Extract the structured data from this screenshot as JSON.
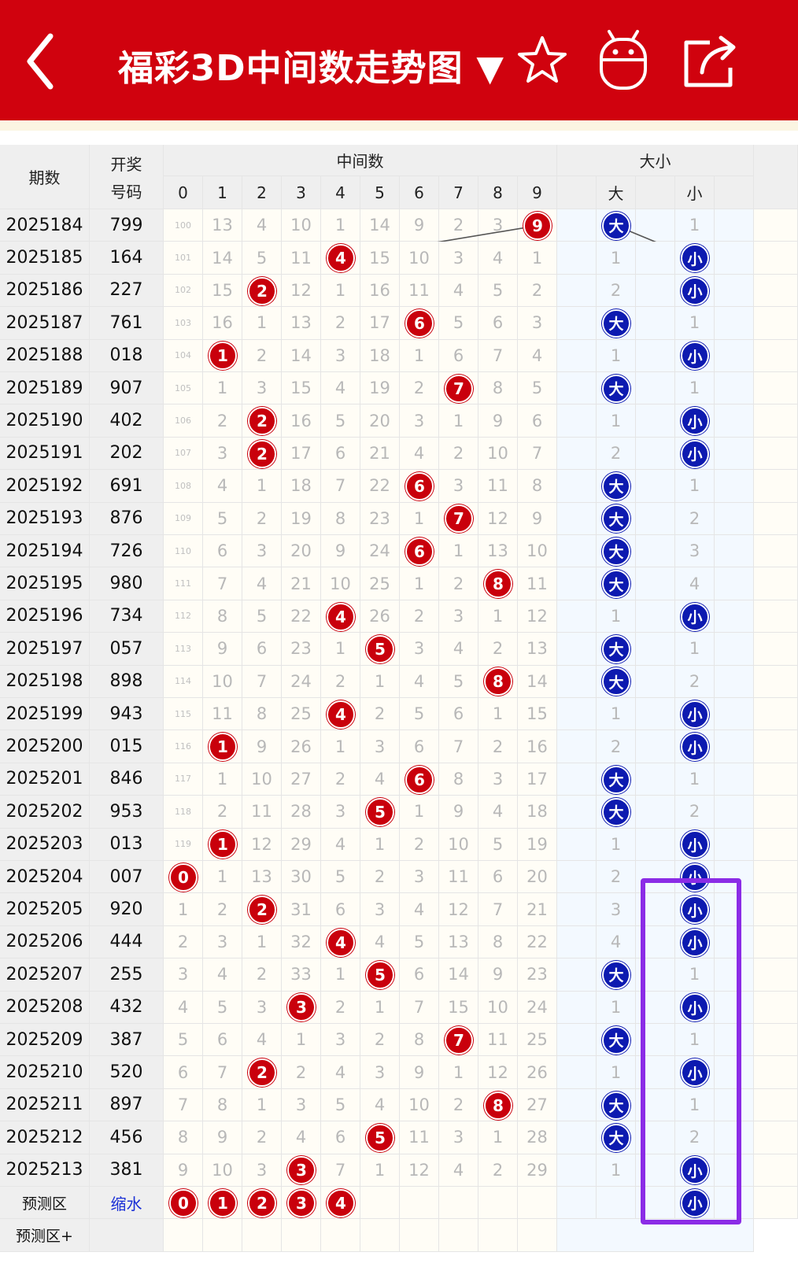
{
  "app": {
    "title": "福彩3D中间数走势图 ▼",
    "icons": [
      "back-arrow-icon",
      "star-icon",
      "android-robot-icon",
      "share-icon"
    ],
    "colors": {
      "header": "#d0020e",
      "red_ball": "#c9000c",
      "blue_ball": "#0d1ab0",
      "highlight": "#8b2ce6"
    }
  },
  "table": {
    "headers": {
      "issue": "期数",
      "number_line1": "开奖",
      "number_line2": "号码",
      "middle": "中间数",
      "size": "大小",
      "digits": [
        "0",
        "1",
        "2",
        "3",
        "4",
        "5",
        "6",
        "7",
        "8",
        "9"
      ],
      "big": "大",
      "small": "小"
    },
    "rows": [
      {
        "issue": "2025184",
        "number": "799",
        "col0": "100",
        "cells": [
          "13",
          "4",
          "10",
          "1",
          "14",
          "9",
          "2",
          "3",
          "9"
        ],
        "mid": 9,
        "big": "大",
        "small": "1",
        "size": "big"
      },
      {
        "issue": "2025185",
        "number": "164",
        "col0": "101",
        "cells": [
          "14",
          "5",
          "11",
          "4",
          "15",
          "10",
          "3",
          "4",
          "1"
        ],
        "mid": 4,
        "big": "1",
        "small": "小",
        "size": "small"
      },
      {
        "issue": "2025186",
        "number": "227",
        "col0": "102",
        "cells": [
          "15",
          "2",
          "12",
          "1",
          "16",
          "11",
          "4",
          "5",
          "2"
        ],
        "mid": 2,
        "big": "2",
        "small": "小",
        "size": "small"
      },
      {
        "issue": "2025187",
        "number": "761",
        "col0": "103",
        "cells": [
          "16",
          "1",
          "13",
          "2",
          "17",
          "6",
          "5",
          "6",
          "3"
        ],
        "mid": 6,
        "big": "大",
        "small": "1",
        "size": "big"
      },
      {
        "issue": "2025188",
        "number": "018",
        "col0": "104",
        "cells": [
          "1",
          "2",
          "14",
          "3",
          "18",
          "1",
          "6",
          "7",
          "4"
        ],
        "mid": 1,
        "big": "1",
        "small": "小",
        "size": "small"
      },
      {
        "issue": "2025189",
        "number": "907",
        "col0": "105",
        "cells": [
          "1",
          "3",
          "15",
          "4",
          "19",
          "2",
          "7",
          "8",
          "5"
        ],
        "mid": 7,
        "big": "大",
        "small": "1",
        "size": "big"
      },
      {
        "issue": "2025190",
        "number": "402",
        "col0": "106",
        "cells": [
          "2",
          "2",
          "16",
          "5",
          "20",
          "3",
          "1",
          "9",
          "6"
        ],
        "mid": 2,
        "big": "1",
        "small": "小",
        "size": "small"
      },
      {
        "issue": "2025191",
        "number": "202",
        "col0": "107",
        "cells": [
          "3",
          "2",
          "17",
          "6",
          "21",
          "4",
          "2",
          "10",
          "7"
        ],
        "mid": 2,
        "big": "2",
        "small": "小",
        "size": "small"
      },
      {
        "issue": "2025192",
        "number": "691",
        "col0": "108",
        "cells": [
          "4",
          "1",
          "18",
          "7",
          "22",
          "6",
          "3",
          "11",
          "8"
        ],
        "mid": 6,
        "big": "大",
        "small": "1",
        "size": "big"
      },
      {
        "issue": "2025193",
        "number": "876",
        "col0": "109",
        "cells": [
          "5",
          "2",
          "19",
          "8",
          "23",
          "1",
          "7",
          "12",
          "9"
        ],
        "mid": 7,
        "big": "大",
        "small": "2",
        "size": "big"
      },
      {
        "issue": "2025194",
        "number": "726",
        "col0": "110",
        "cells": [
          "6",
          "3",
          "20",
          "9",
          "24",
          "6",
          "1",
          "13",
          "10"
        ],
        "mid": 6,
        "big": "大",
        "small": "3",
        "size": "big"
      },
      {
        "issue": "2025195",
        "number": "980",
        "col0": "111",
        "cells": [
          "7",
          "4",
          "21",
          "10",
          "25",
          "1",
          "2",
          "8",
          "11"
        ],
        "mid": 8,
        "big": "大",
        "small": "4",
        "size": "big"
      },
      {
        "issue": "2025196",
        "number": "734",
        "col0": "112",
        "cells": [
          "8",
          "5",
          "22",
          "4",
          "26",
          "2",
          "3",
          "1",
          "12"
        ],
        "mid": 4,
        "big": "1",
        "small": "小",
        "size": "small"
      },
      {
        "issue": "2025197",
        "number": "057",
        "col0": "113",
        "cells": [
          "9",
          "6",
          "23",
          "1",
          "5",
          "3",
          "4",
          "2",
          "13"
        ],
        "mid": 5,
        "big": "大",
        "small": "1",
        "size": "big"
      },
      {
        "issue": "2025198",
        "number": "898",
        "col0": "114",
        "cells": [
          "10",
          "7",
          "24",
          "2",
          "1",
          "4",
          "5",
          "8",
          "14"
        ],
        "mid": 8,
        "big": "大",
        "small": "2",
        "size": "big"
      },
      {
        "issue": "2025199",
        "number": "943",
        "col0": "115",
        "cells": [
          "11",
          "8",
          "25",
          "4",
          "2",
          "5",
          "6",
          "1",
          "15"
        ],
        "mid": 4,
        "big": "1",
        "small": "小",
        "size": "small"
      },
      {
        "issue": "2025200",
        "number": "015",
        "col0": "116",
        "cells": [
          "1",
          "9",
          "26",
          "1",
          "3",
          "6",
          "7",
          "2",
          "16"
        ],
        "mid": 1,
        "big": "2",
        "small": "小",
        "size": "small"
      },
      {
        "issue": "2025201",
        "number": "846",
        "col0": "117",
        "cells": [
          "1",
          "10",
          "27",
          "2",
          "4",
          "6",
          "8",
          "3",
          "17"
        ],
        "mid": 6,
        "big": "大",
        "small": "1",
        "size": "big"
      },
      {
        "issue": "2025202",
        "number": "953",
        "col0": "118",
        "cells": [
          "2",
          "11",
          "28",
          "3",
          "5",
          "1",
          "9",
          "4",
          "18"
        ],
        "mid": 5,
        "big": "大",
        "small": "2",
        "size": "big"
      },
      {
        "issue": "2025203",
        "number": "013",
        "col0": "119",
        "cells": [
          "1",
          "12",
          "29",
          "4",
          "1",
          "2",
          "10",
          "5",
          "19"
        ],
        "mid": 1,
        "big": "1",
        "small": "小",
        "size": "small"
      },
      {
        "issue": "2025204",
        "number": "007",
        "col0": "0",
        "cells": [
          "1",
          "13",
          "30",
          "5",
          "2",
          "3",
          "11",
          "6",
          "20"
        ],
        "mid": 0,
        "big": "2",
        "small": "小",
        "size": "small"
      },
      {
        "issue": "2025205",
        "number": "920",
        "col0": "1",
        "cells": [
          "2",
          "2",
          "31",
          "6",
          "3",
          "4",
          "12",
          "7",
          "21"
        ],
        "mid": 2,
        "big": "3",
        "small": "小",
        "size": "small"
      },
      {
        "issue": "2025206",
        "number": "444",
        "col0": "2",
        "cells": [
          "3",
          "1",
          "32",
          "4",
          "4",
          "5",
          "13",
          "8",
          "22"
        ],
        "mid": 4,
        "big": "4",
        "small": "小",
        "size": "small"
      },
      {
        "issue": "2025207",
        "number": "255",
        "col0": "3",
        "cells": [
          "4",
          "2",
          "33",
          "1",
          "5",
          "6",
          "14",
          "9",
          "23"
        ],
        "mid": 5,
        "big": "大",
        "small": "1",
        "size": "big"
      },
      {
        "issue": "2025208",
        "number": "432",
        "col0": "4",
        "cells": [
          "5",
          "3",
          "3",
          "2",
          "1",
          "7",
          "15",
          "10",
          "24"
        ],
        "mid": 3,
        "big": "1",
        "small": "小",
        "size": "small"
      },
      {
        "issue": "2025209",
        "number": "387",
        "col0": "5",
        "cells": [
          "6",
          "4",
          "1",
          "3",
          "2",
          "8",
          "7",
          "11",
          "25"
        ],
        "mid": 7,
        "big": "大",
        "small": "1",
        "size": "big"
      },
      {
        "issue": "2025210",
        "number": "520",
        "col0": "6",
        "cells": [
          "7",
          "2",
          "2",
          "4",
          "3",
          "9",
          "1",
          "12",
          "26"
        ],
        "mid": 2,
        "big": "1",
        "small": "小",
        "size": "small"
      },
      {
        "issue": "2025211",
        "number": "897",
        "col0": "7",
        "cells": [
          "8",
          "1",
          "3",
          "5",
          "4",
          "10",
          "2",
          "8",
          "27"
        ],
        "mid": 8,
        "big": "大",
        "small": "1",
        "size": "big"
      },
      {
        "issue": "2025212",
        "number": "456",
        "col0": "8",
        "cells": [
          "9",
          "2",
          "4",
          "6",
          "5",
          "11",
          "3",
          "1",
          "28"
        ],
        "mid": 5,
        "big": "大",
        "small": "2",
        "size": "big"
      },
      {
        "issue": "2025213",
        "number": "381",
        "col0": "9",
        "cells": [
          "10",
          "3",
          "3",
          "7",
          "1",
          "12",
          "4",
          "2",
          "29"
        ],
        "mid": 3,
        "big": "1",
        "small": "小",
        "size": "small"
      }
    ],
    "predict": {
      "label": "预测区",
      "tag": "缩水",
      "balls": [
        "0",
        "1",
        "2",
        "3",
        "4"
      ],
      "small": "小"
    },
    "predict_plus": "预测区+"
  }
}
